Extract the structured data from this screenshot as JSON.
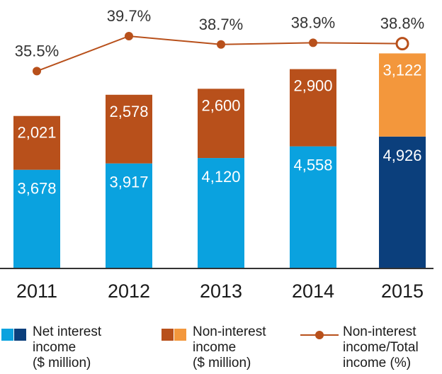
{
  "chart_data": {
    "type": "bar",
    "stacked": true,
    "categories": [
      "2011",
      "2012",
      "2013",
      "2014",
      "2015"
    ],
    "ylim": [
      0,
      8500
    ],
    "grid": false,
    "series": [
      {
        "name": "Net interest income ($ million)",
        "values": [
          3678,
          3917,
          4120,
          4558,
          4926
        ],
        "labels": [
          "3,678",
          "3,917",
          "4,120",
          "4,558",
          "4,926"
        ]
      },
      {
        "name": "Non-interest income ($ million)",
        "values": [
          2021,
          2578,
          2600,
          2900,
          3122
        ],
        "labels": [
          "2,021",
          "2,578",
          "2,600",
          "2,900",
          "3,122"
        ]
      }
    ],
    "line_series": {
      "name": "Non-interest income/Total income (%)",
      "values": [
        35.5,
        39.7,
        38.7,
        38.9,
        38.8
      ],
      "labels": [
        "35.5%",
        "39.7%",
        "38.7%",
        "38.9%",
        "38.8%"
      ],
      "ylim": [
        30,
        42
      ]
    },
    "colors": {
      "net_interest": "#0aa2df",
      "net_interest_highlight": "#0b3f7c",
      "non_interest": "#b8501b",
      "non_interest_highlight": "#f3973c",
      "line": "#b8501b",
      "axis": "#333333"
    },
    "highlight_index": 4,
    "legend_position": "bottom"
  },
  "legend": {
    "net_interest": [
      "Net interest",
      "income",
      "($ million)"
    ],
    "non_interest": [
      "Non-interest",
      "income",
      "($ million)"
    ],
    "ratio": [
      "Non-interest",
      "income/Total",
      "income (%)"
    ]
  }
}
